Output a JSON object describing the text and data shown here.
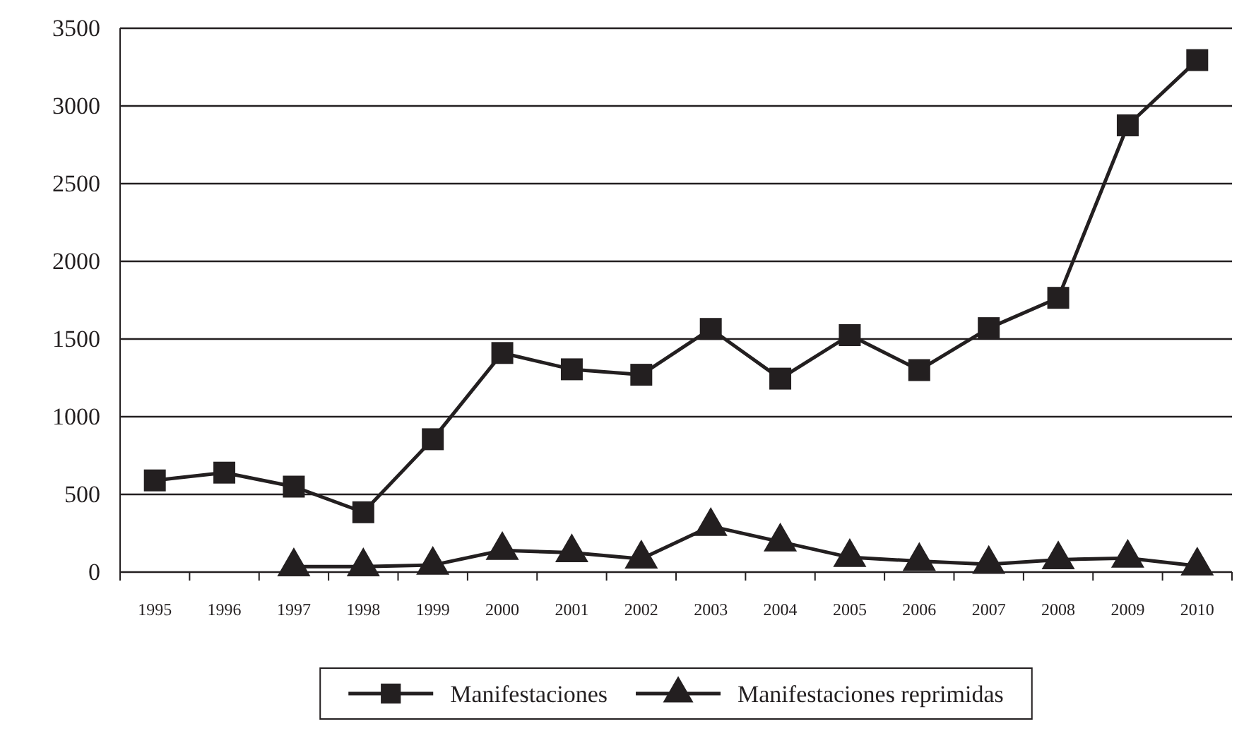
{
  "chart_data": {
    "type": "line",
    "categories": [
      "1995",
      "1996",
      "1997",
      "1998",
      "1999",
      "2000",
      "2001",
      "2002",
      "2003",
      "2004",
      "2005",
      "2006",
      "2007",
      "2008",
      "2009",
      "2010"
    ],
    "series": [
      {
        "name": "Manifestaciones",
        "color": "#231f20",
        "marker": "square",
        "values": [
          590,
          640,
          550,
          385,
          855,
          1410,
          1305,
          1270,
          1565,
          1245,
          1525,
          1300,
          1570,
          1765,
          2875,
          3295
        ]
      },
      {
        "name": "Manifestaciones reprimidas",
        "color": "#231f20",
        "marker": "triangle",
        "values": [
          null,
          null,
          35,
          35,
          45,
          140,
          125,
          85,
          295,
          195,
          95,
          70,
          50,
          80,
          90,
          40
        ]
      }
    ],
    "ylim": [
      0,
      3500
    ],
    "yticks": [
      0,
      500,
      1000,
      1500,
      2000,
      2500,
      3000,
      3500
    ],
    "grid": "y",
    "legend": "bottom",
    "line_style": "solid"
  }
}
